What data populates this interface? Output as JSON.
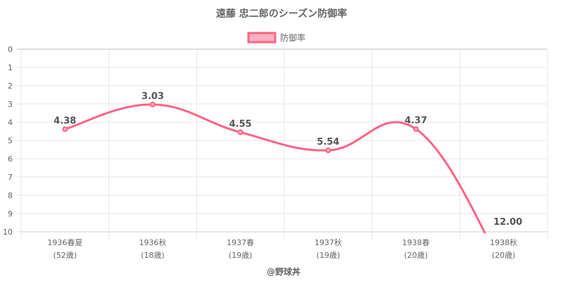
{
  "chart_data": {
    "type": "line",
    "title": "遠藤 忠二郎のシーズン防御率",
    "legend": {
      "label": "防御率",
      "placement": "top"
    },
    "categories": [
      [
        "1936春夏",
        "(52歳)"
      ],
      [
        "1936秋",
        "(18歳)"
      ],
      [
        "1937春",
        "(19歳)"
      ],
      [
        "1937秋",
        "(19歳)"
      ],
      [
        "1938春",
        "(20歳)"
      ],
      [
        "1938秋",
        "(20歳)"
      ]
    ],
    "series": [
      {
        "name": "防御率",
        "values": [
          4.38,
          3.03,
          4.55,
          5.54,
          4.37,
          12.0
        ],
        "labels": [
          "4.38",
          "3.03",
          "4.55",
          "5.54",
          "4.37",
          "12.00"
        ]
      }
    ],
    "yticks": [
      "0",
      "1",
      "2",
      "3",
      "4",
      "5",
      "6",
      "7",
      "8",
      "9",
      "10"
    ],
    "ylim": [
      0,
      10
    ],
    "y_reversed": true,
    "grid": true,
    "line_color": "#ff6384",
    "fill_color": "#ffb1c1"
  },
  "credit": "@野球丼"
}
